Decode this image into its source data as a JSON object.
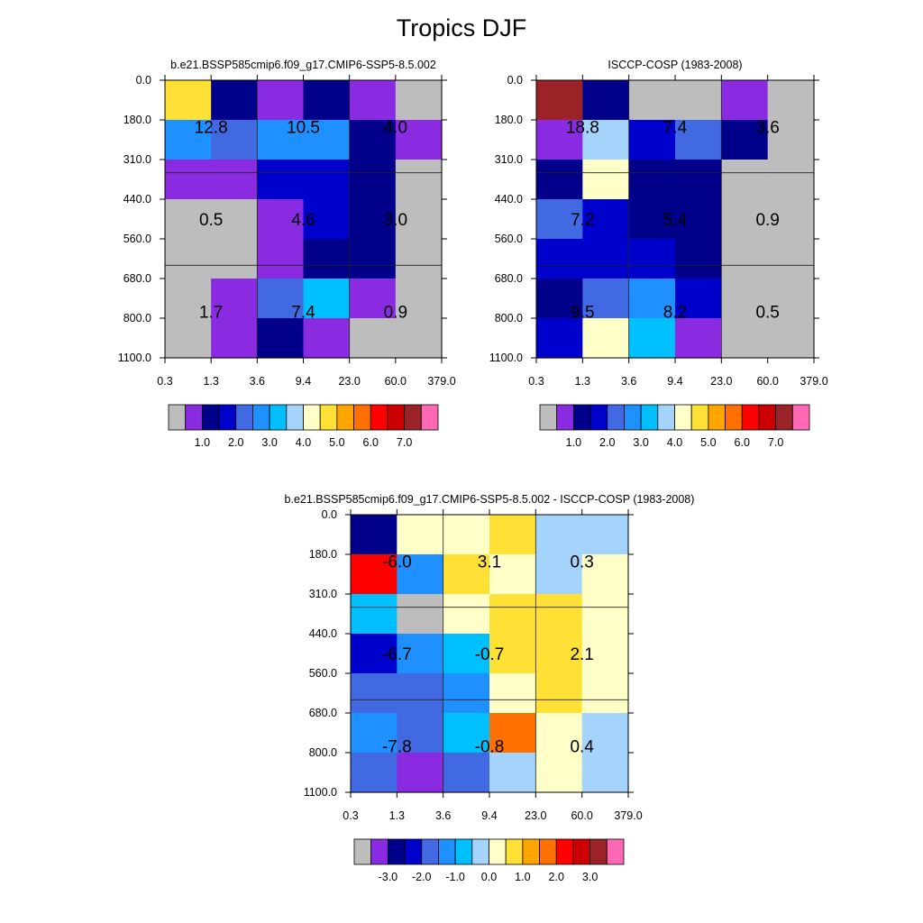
{
  "figure": {
    "title": "Tropics DJF"
  },
  "palette": {
    "absolute": [
      "#bdbdbd",
      "#8a2be2",
      "#00008b",
      "#0000cd",
      "#4169e1",
      "#1e90ff",
      "#00bfff",
      "#a4d3fc",
      "#ffffc8",
      "#ffe135",
      "#ffa500",
      "#ff7000",
      "#ff0000",
      "#cc0000",
      "#9b2226",
      "#ff69b4"
    ],
    "difference": [
      "#bdbdbd",
      "#8a2be2",
      "#00008b",
      "#0000cd",
      "#4169e1",
      "#1e90ff",
      "#00bfff",
      "#a4d3fc",
      "#ffffc8",
      "#ffe135",
      "#ffa500",
      "#ff7000",
      "#ff0000",
      "#cc0000",
      "#9b2226",
      "#ff69b4"
    ]
  },
  "axes": {
    "x_ticks": [
      "0.3",
      "1.3",
      "3.6",
      "9.4",
      "23.0",
      "60.0",
      "379.0"
    ],
    "y_ticks": [
      "0.0",
      "180.0",
      "310.0",
      "440.0",
      "560.0",
      "680.0",
      "800.0",
      "1100.0"
    ]
  },
  "colorbars": {
    "absolute_labels": [
      "1.0",
      "2.0",
      "3.0",
      "4.0",
      "5.0",
      "6.0",
      "7.0"
    ],
    "difference_labels": [
      "-3.0",
      "-2.0",
      "-1.0",
      "0.0",
      "1.0",
      "2.0",
      "3.0"
    ]
  },
  "chart_data": [
    {
      "id": "model",
      "type": "heatmap",
      "title": "b.e21.BSSP585cmip6.f09_g17.CMIP6-SSP5-8.5.002",
      "xlabel": "",
      "ylabel": "",
      "x_bins": [
        "0.3",
        "1.3",
        "3.6",
        "9.4",
        "23.0",
        "60.0",
        "379.0"
      ],
      "y_bins": [
        "0.0",
        "180.0",
        "310.0",
        "440.0",
        "560.0",
        "680.0",
        "800.0",
        "1100.0"
      ],
      "colorbar": "absolute",
      "cell_color_index": [
        [
          9,
          2,
          1,
          2,
          1,
          0
        ],
        [
          5,
          4,
          5,
          5,
          2,
          1
        ],
        [
          1,
          1,
          3,
          3,
          2,
          0
        ],
        [
          0,
          0,
          1,
          3,
          2,
          0
        ],
        [
          0,
          0,
          1,
          2,
          2,
          0
        ],
        [
          0,
          1,
          4,
          6,
          1,
          0
        ],
        [
          0,
          1,
          2,
          1,
          0,
          0
        ]
      ],
      "group_values": [
        [
          "12.8",
          "10.5",
          "4.0"
        ],
        [
          "0.5",
          "4.6",
          "3.0"
        ],
        [
          "1.7",
          "7.4",
          "0.9"
        ]
      ]
    },
    {
      "id": "obs",
      "type": "heatmap",
      "title": "ISCCP-COSP (1983-2008)",
      "xlabel": "",
      "ylabel": "",
      "x_bins": [
        "0.3",
        "1.3",
        "3.6",
        "9.4",
        "23.0",
        "60.0",
        "379.0"
      ],
      "y_bins": [
        "0.0",
        "180.0",
        "310.0",
        "440.0",
        "560.0",
        "680.0",
        "800.0",
        "1100.0"
      ],
      "colorbar": "absolute",
      "cell_color_index": [
        [
          14,
          2,
          0,
          0,
          1,
          0
        ],
        [
          1,
          7,
          3,
          4,
          2,
          0
        ],
        [
          2,
          8,
          2,
          2,
          0,
          0
        ],
        [
          4,
          3,
          2,
          2,
          0,
          0
        ],
        [
          3,
          3,
          3,
          2,
          0,
          0
        ],
        [
          2,
          4,
          5,
          3,
          0,
          0
        ],
        [
          3,
          8,
          6,
          1,
          0,
          0
        ]
      ],
      "group_values": [
        [
          "18.8",
          "7.4",
          "3.6"
        ],
        [
          "7.2",
          "5.4",
          "0.9"
        ],
        [
          "9.5",
          "8.2",
          "0.5"
        ]
      ]
    },
    {
      "id": "diff",
      "type": "heatmap",
      "title": "b.e21.BSSP585cmip6.f09_g17.CMIP6-SSP5-8.5.002 - ISCCP-COSP (1983-2008)",
      "xlabel": "",
      "ylabel": "",
      "x_bins": [
        "0.3",
        "1.3",
        "3.6",
        "9.4",
        "23.0",
        "60.0",
        "379.0"
      ],
      "y_bins": [
        "0.0",
        "180.0",
        "310.0",
        "440.0",
        "560.0",
        "680.0",
        "800.0",
        "1100.0"
      ],
      "colorbar": "difference",
      "cell_color_index": [
        [
          2,
          8,
          8,
          9,
          7,
          7
        ],
        [
          12,
          5,
          9,
          8,
          7,
          8
        ],
        [
          6,
          0,
          8,
          9,
          9,
          8
        ],
        [
          3,
          5,
          6,
          9,
          9,
          8
        ],
        [
          4,
          4,
          5,
          8,
          9,
          8
        ],
        [
          5,
          4,
          6,
          11,
          8,
          7
        ],
        [
          4,
          1,
          4,
          7,
          8,
          7
        ]
      ],
      "group_values": [
        [
          "-6.0",
          "3.1",
          "0.3"
        ],
        [
          "-6.7",
          "-0.7",
          "2.1"
        ],
        [
          "-7.8",
          "-0.8",
          "0.4"
        ]
      ]
    }
  ]
}
